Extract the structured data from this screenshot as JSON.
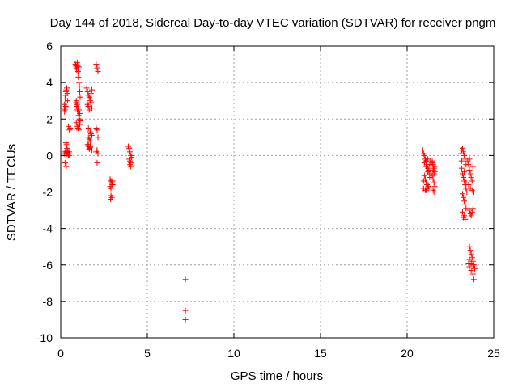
{
  "chart_data": {
    "type": "scatter",
    "title": "Day 144 of 2018, Sidereal Day-to-day VTEC variation (SDTVAR) for receiver pngm",
    "xlabel": "GPS time / hours",
    "ylabel": "SDTVAR / TECUs",
    "xlim": [
      0,
      25
    ],
    "ylim": [
      -10,
      6
    ],
    "xticks": [
      0,
      5,
      10,
      15,
      20,
      25
    ],
    "yticks": [
      -10,
      -8,
      -6,
      -4,
      -2,
      0,
      2,
      4,
      6
    ],
    "grid": true,
    "marker": "+",
    "color": "#ff0000",
    "series": [
      {
        "name": "SDTVAR",
        "x": [
          0.2,
          0.22,
          0.25,
          0.28,
          0.3,
          0.32,
          0.35,
          0.38,
          0.4,
          0.45,
          0.5,
          0.55,
          0.22,
          0.25,
          0.28,
          0.3,
          0.33,
          0.36,
          0.38,
          0.42,
          0.46,
          0.5,
          0.2,
          0.25,
          0.3,
          0.35,
          0.4,
          0.45,
          0.5,
          0.25,
          0.32,
          0.4,
          0.85,
          0.88,
          0.9,
          0.92,
          0.95,
          0.98,
          1.0,
          1.02,
          1.05,
          1.08,
          1.1,
          1.12,
          0.9,
          0.95,
          1.0,
          1.05,
          1.1,
          0.88,
          0.92,
          0.96,
          1.0,
          1.04,
          1.08,
          1.12,
          0.9,
          0.95,
          1.0,
          1.05,
          1.1,
          0.95,
          1.05,
          1.0,
          1.5,
          1.55,
          1.6,
          1.65,
          1.7,
          1.75,
          1.8,
          1.55,
          1.6,
          1.65,
          1.7,
          1.75,
          1.8,
          1.6,
          1.7,
          1.75,
          1.8,
          1.6,
          1.65,
          1.7,
          1.75,
          1.55,
          1.6,
          1.65,
          1.7,
          1.6,
          1.7,
          1.65,
          1.8,
          2.05,
          2.1,
          2.15,
          2.05,
          2.1,
          2.15,
          2.1,
          2.05,
          2.15,
          2.1,
          2.85,
          2.9,
          2.95,
          3.0,
          2.85,
          2.9,
          2.95,
          3.0,
          2.9,
          2.95,
          2.88,
          2.98,
          3.9,
          3.95,
          4.0,
          4.05,
          4.1,
          3.95,
          4.0,
          4.05,
          4.0,
          4.05,
          7.2,
          7.2,
          7.2,
          20.9,
          20.95,
          21.0,
          21.05,
          21.1,
          21.15,
          21.2,
          21.25,
          21.3,
          21.0,
          21.05,
          21.1,
          21.15,
          21.2,
          20.95,
          21.05,
          21.15,
          21.25,
          21.0,
          21.1,
          21.2,
          21.3,
          20.95,
          21.1,
          21.2,
          21.3,
          21.35,
          21.45,
          21.5,
          21.55,
          21.6,
          21.45,
          21.5,
          21.55,
          21.6,
          21.5,
          21.55,
          21.45,
          21.6,
          21.5,
          21.55,
          23.1,
          23.15,
          23.2,
          23.25,
          23.3,
          23.35,
          23.4,
          23.15,
          23.2,
          23.25,
          23.3,
          23.35,
          23.4,
          23.45,
          23.2,
          23.25,
          23.3,
          23.35,
          23.4,
          23.2,
          23.3,
          23.25,
          23.35,
          23.15,
          23.3,
          23.4,
          23.5,
          23.55,
          23.6,
          23.65,
          23.7,
          23.75,
          23.55,
          23.6,
          23.65,
          23.7,
          23.75,
          23.8,
          23.6,
          23.65,
          23.7,
          23.75,
          23.8,
          23.85,
          23.9,
          23.55,
          23.6,
          23.7,
          23.8,
          23.85,
          23.6,
          23.7,
          23.8,
          23.65,
          23.75,
          23.85,
          23.6,
          23.8
        ],
        "y": [
          2.6,
          2.8,
          3.1,
          3.3,
          3.5,
          3.6,
          3.7,
          3.4,
          3.0,
          1.6,
          1.4,
          1.5,
          2.4,
          2.5,
          2.7,
          0.7,
          0.6,
          0.4,
          0.3,
          0.2,
          0.1,
          0.0,
          0.1,
          0.2,
          0.3,
          0.1,
          0.2,
          0.0,
          0.2,
          -0.4,
          -0.6,
          0.1,
          5.0,
          4.9,
          4.8,
          4.7,
          5.1,
          4.9,
          4.6,
          4.3,
          4.0,
          3.8,
          3.5,
          3.2,
          3.0,
          2.8,
          2.6,
          2.5,
          2.3,
          2.9,
          2.7,
          2.5,
          2.4,
          2.2,
          2.0,
          1.9,
          1.8,
          1.6,
          1.5,
          1.4,
          1.7,
          4.95,
          4.85,
          4.7,
          3.7,
          3.5,
          3.3,
          3.2,
          3.0,
          2.9,
          2.6,
          2.8,
          2.7,
          2.5,
          3.1,
          3.4,
          3.6,
          1.5,
          1.3,
          1.2,
          1.1,
          1.0,
          0.9,
          0.8,
          1.2,
          0.6,
          0.5,
          0.4,
          0.5,
          0.6,
          0.45,
          0.35,
          0.3,
          5.0,
          4.8,
          4.6,
          1.5,
          1.4,
          1.0,
          0.3,
          0.2,
          0.1,
          -0.4,
          -1.3,
          -1.4,
          -1.5,
          -1.6,
          -1.7,
          -1.8,
          -1.5,
          -1.4,
          -2.2,
          -2.3,
          -2.4,
          -1.6,
          0.5,
          0.4,
          0.2,
          0.0,
          -0.1,
          -0.2,
          -0.3,
          -0.4,
          -0.5,
          -0.6,
          -6.8,
          -8.5,
          -9.0,
          0.3,
          0.1,
          0.0,
          -0.2,
          -0.3,
          -0.5,
          -0.7,
          -0.8,
          -1.0,
          -1.1,
          -1.3,
          -1.5,
          -1.6,
          -1.7,
          -1.8,
          -1.9,
          -1.8,
          -1.7,
          -0.4,
          -0.6,
          -0.9,
          -1.2,
          -1.4,
          -1.9,
          -0.2,
          -0.5,
          -0.3,
          -0.3,
          -0.5,
          -0.7,
          -0.9,
          -1.1,
          -1.3,
          -1.5,
          -1.7,
          -1.9,
          -2.0,
          -0.4,
          -0.6,
          -0.8,
          -1.0,
          0.1,
          0.3,
          0.4,
          0.2,
          0.0,
          -0.2,
          -0.5,
          -0.7,
          -1.0,
          -1.2,
          -1.4,
          -1.6,
          -1.8,
          -2.0,
          -2.1,
          -2.3,
          -2.5,
          -2.7,
          -2.9,
          -3.1,
          -3.3,
          -3.4,
          -3.5,
          -0.3,
          -0.9,
          -1.5,
          -0.3,
          -0.5,
          -0.8,
          -1.0,
          -1.2,
          -1.4,
          -1.6,
          -3.0,
          -3.2,
          -3.3,
          -3.1,
          -2.9,
          -5.0,
          -5.2,
          -5.4,
          -5.6,
          -5.8,
          -6.0,
          -6.2,
          -5.9,
          -6.1,
          -6.3,
          -6.5,
          -6.8,
          -5.7,
          -5.9,
          -6.0,
          -1.8,
          -1.9,
          -2.0,
          -0.2,
          -0.6
        ]
      }
    ]
  }
}
